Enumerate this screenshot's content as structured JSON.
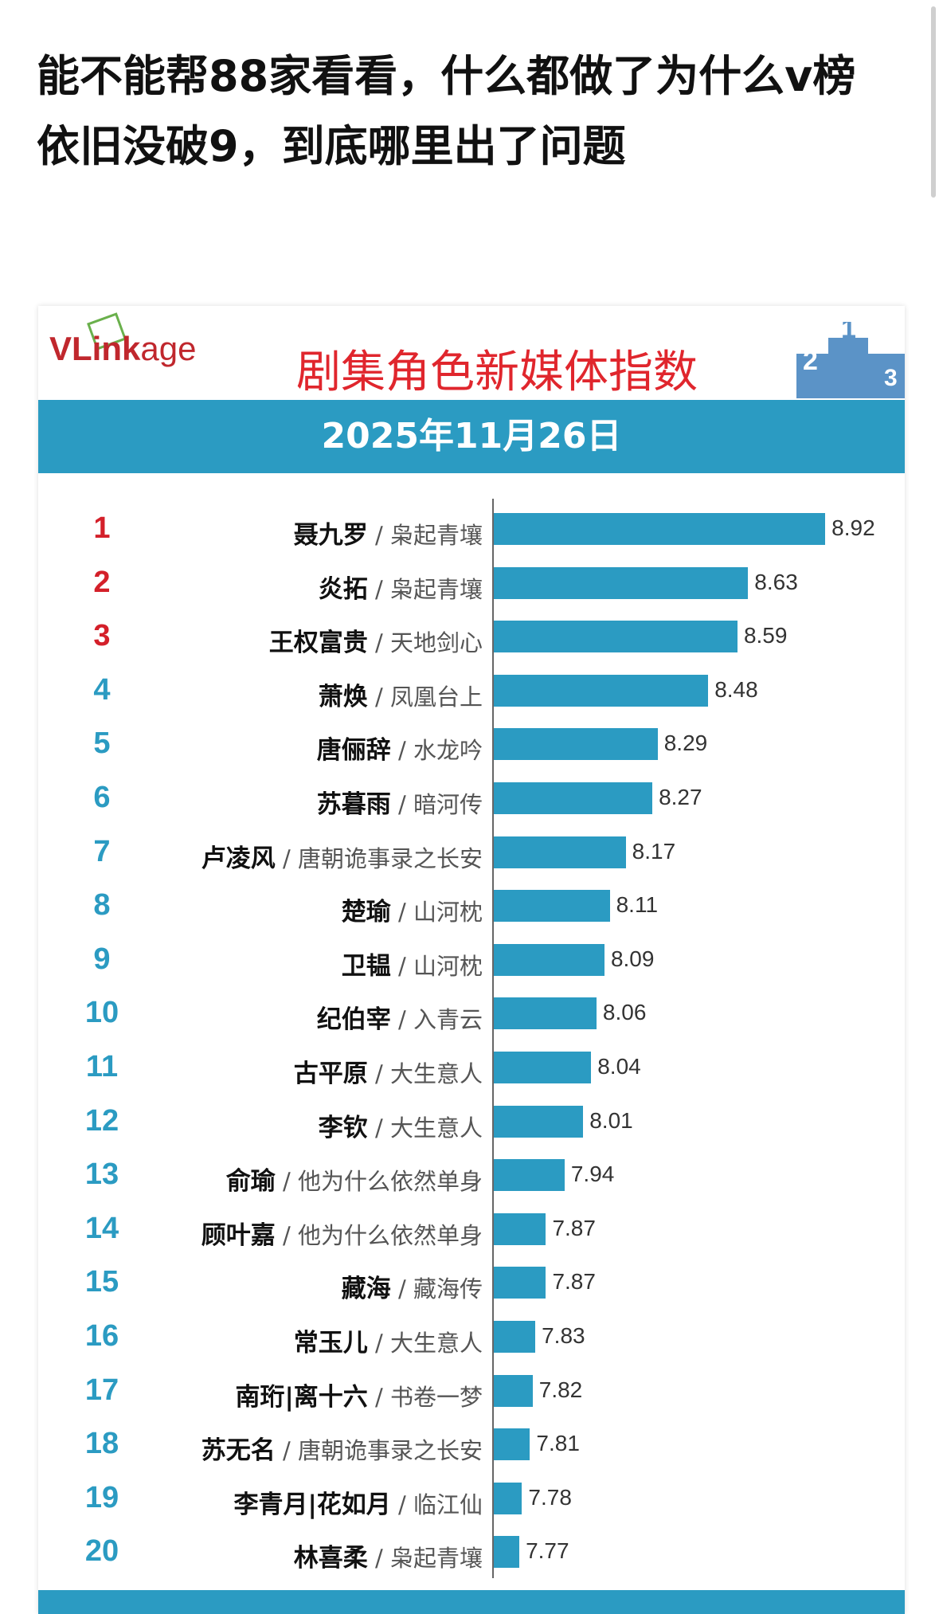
{
  "post": {
    "title": "能不能帮88家看看，什么都做了为什么v榜依旧没破9，到底哪里出了问题"
  },
  "chart_data": {
    "type": "bar",
    "orientation": "horizontal",
    "brand": "VLinkage",
    "title": "剧集角色新媒体指数",
    "subtitle": "2025年11月26日",
    "bar_color": "#2b9bc2",
    "top3_rank_color": "#d4202a",
    "rank_color": "#2b9bc2",
    "categories": [
      {
        "rank": "1",
        "name": "聂九罗",
        "drama": "枭起青壤"
      },
      {
        "rank": "2",
        "name": "炎拓",
        "drama": "枭起青壤"
      },
      {
        "rank": "3",
        "name": "王权富贵",
        "drama": "天地剑心"
      },
      {
        "rank": "4",
        "name": "萧焕",
        "drama": "凤凰台上"
      },
      {
        "rank": "5",
        "name": "唐俪辞",
        "drama": "水龙吟"
      },
      {
        "rank": "6",
        "name": "苏暮雨",
        "drama": "暗河传"
      },
      {
        "rank": "7",
        "name": "卢凌风",
        "drama": "唐朝诡事录之长安"
      },
      {
        "rank": "8",
        "name": "楚瑜",
        "drama": "山河枕"
      },
      {
        "rank": "9",
        "name": "卫韫",
        "drama": "山河枕"
      },
      {
        "rank": "10",
        "name": "纪伯宰",
        "drama": "入青云"
      },
      {
        "rank": "11",
        "name": "古平原",
        "drama": "大生意人"
      },
      {
        "rank": "12",
        "name": "李钦",
        "drama": "大生意人"
      },
      {
        "rank": "13",
        "name": "俞瑜",
        "drama": "他为什么依然单身"
      },
      {
        "rank": "14",
        "name": "顾叶嘉",
        "drama": "他为什么依然单身"
      },
      {
        "rank": "15",
        "name": "藏海",
        "drama": "藏海传"
      },
      {
        "rank": "16",
        "name": "常玉儿",
        "drama": "大生意人"
      },
      {
        "rank": "17",
        "name": "南珩|离十六",
        "drama": "书卷一梦"
      },
      {
        "rank": "18",
        "name": "苏无名",
        "drama": "唐朝诡事录之长安"
      },
      {
        "rank": "19",
        "name": "李青月|花如月",
        "drama": "临江仙"
      },
      {
        "rank": "20",
        "name": "林喜柔",
        "drama": "枭起青壤"
      }
    ],
    "values": [
      "8.92",
      "8.63",
      "8.59",
      "8.48",
      "8.29",
      "8.27",
      "8.17",
      "8.11",
      "8.09",
      "8.06",
      "8.04",
      "8.01",
      "7.94",
      "7.87",
      "7.87",
      "7.83",
      "7.82",
      "7.81",
      "7.78",
      "7.77"
    ]
  }
}
